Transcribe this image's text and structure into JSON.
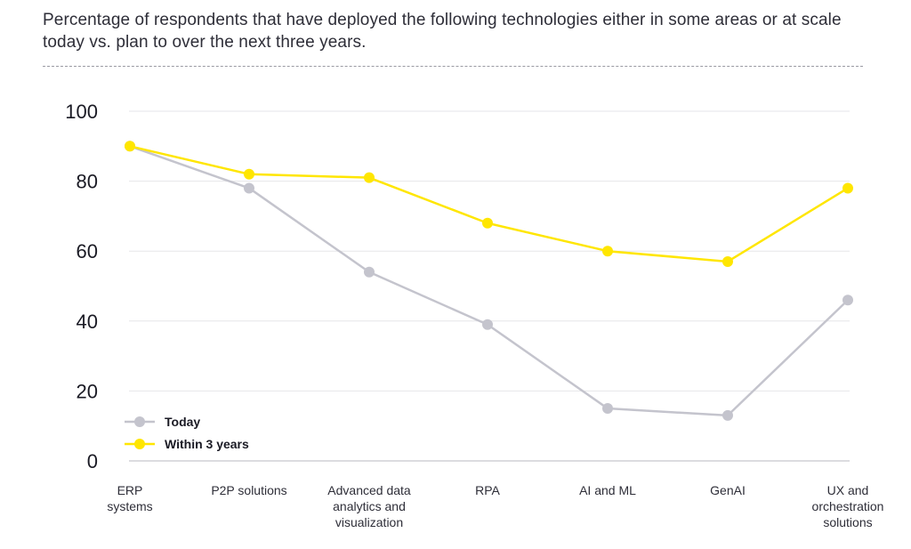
{
  "header": {
    "title": "Percentage of respondents that have deployed the following technologies either in some areas or at scale today vs. plan to over the next three years."
  },
  "colors": {
    "today": "#c4c4cd",
    "within": "#ffe600",
    "grid": "#e6e6e9",
    "axis": "#c8c8ce"
  },
  "chart_data": {
    "type": "line",
    "title": "Percentage of respondents that have deployed the following technologies either in some areas or at scale today vs. plan to over the next three years.",
    "xlabel": "",
    "ylabel": "",
    "ylim": [
      0,
      100
    ],
    "yticks": [
      "0",
      "20",
      "40",
      "60",
      "80",
      "100"
    ],
    "grid": true,
    "legend_position": "bottom-left",
    "categories": [
      [
        "ERP",
        "systems"
      ],
      [
        "P2P solutions"
      ],
      [
        "Advanced data",
        "analytics and",
        "visualization"
      ],
      [
        "RPA"
      ],
      [
        "AI and ML"
      ],
      [
        "GenAI"
      ],
      [
        "UX and",
        "orchestration",
        "solutions"
      ]
    ],
    "series": [
      {
        "name": "Today",
        "color": "#c4c4cd",
        "values": [
          90,
          78,
          54,
          39,
          15,
          13,
          46
        ]
      },
      {
        "name": "Within 3 years",
        "color": "#ffe600",
        "values": [
          90,
          82,
          81,
          68,
          60,
          57,
          78
        ]
      }
    ]
  }
}
